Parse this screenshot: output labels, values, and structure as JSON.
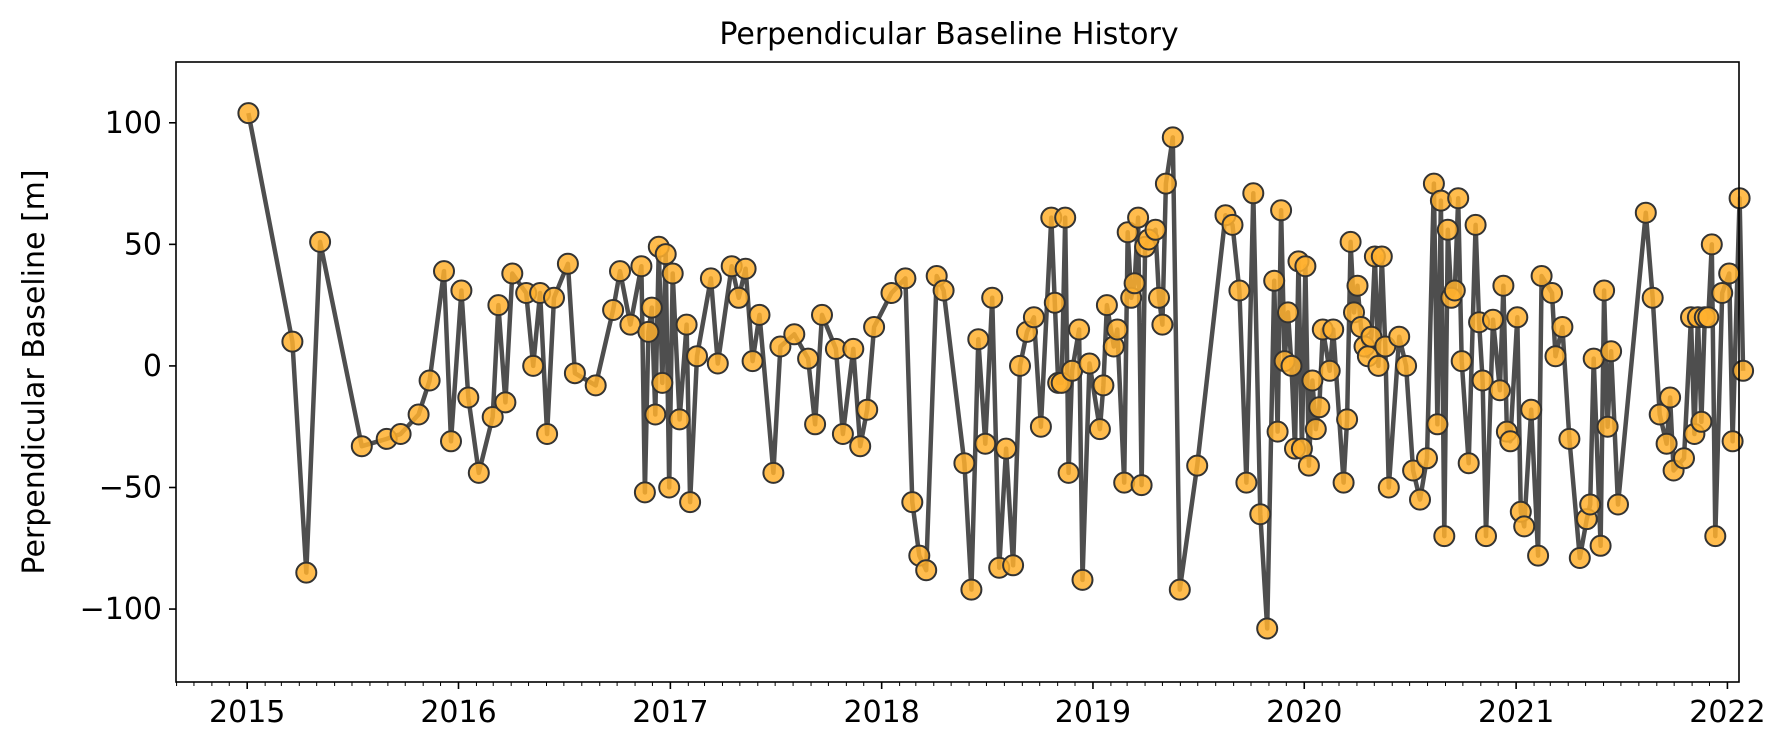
{
  "chart_data": {
    "type": "line",
    "title": "Perpendicular Baseline History",
    "xlabel": "",
    "ylabel": "Perpendicular Baseline [m]",
    "xlim": [
      "2014-08-31",
      "2022-01-21"
    ],
    "ylim": [
      -130,
      125
    ],
    "x_ticks": [
      "2015",
      "2016",
      "2017",
      "2018",
      "2019",
      "2020",
      "2021",
      "2022"
    ],
    "y_ticks": [
      -100,
      -50,
      0,
      50,
      100
    ],
    "y_tick_labels": [
      "−100",
      "−50",
      "0",
      "50",
      "100"
    ],
    "grid": false,
    "line_color": "#444444",
    "marker_face_color": "#FFB02E",
    "marker_edge_color": "#333333",
    "series": [
      {
        "points": [
          [
            "2015-01-03",
            104
          ],
          [
            "2015-03-20",
            10
          ],
          [
            "2015-04-13",
            -85
          ],
          [
            "2015-05-07",
            51
          ],
          [
            "2015-07-18",
            -33
          ],
          [
            "2015-08-30",
            -30
          ],
          [
            "2015-09-23",
            -28
          ],
          [
            "2015-10-24",
            -20
          ],
          [
            "2015-11-12",
            -6
          ],
          [
            "2015-12-07",
            39
          ],
          [
            "2015-12-19",
            -31
          ],
          [
            "2016-01-06",
            31
          ],
          [
            "2016-01-18",
            -13
          ],
          [
            "2016-02-05",
            -44
          ],
          [
            "2016-02-29",
            -21
          ],
          [
            "2016-03-10",
            25
          ],
          [
            "2016-03-22",
            -15
          ],
          [
            "2016-04-03",
            38
          ],
          [
            "2016-04-27",
            30
          ],
          [
            "2016-05-09",
            0
          ],
          [
            "2016-05-21",
            30
          ],
          [
            "2016-06-02",
            -28
          ],
          [
            "2016-06-14",
            28
          ],
          [
            "2016-07-08",
            42
          ],
          [
            "2016-07-20",
            -3
          ],
          [
            "2016-08-25",
            -8
          ],
          [
            "2016-09-24",
            23
          ],
          [
            "2016-10-06",
            39
          ],
          [
            "2016-10-24",
            17
          ],
          [
            "2016-11-12",
            41
          ],
          [
            "2016-11-18",
            -52
          ],
          [
            "2016-11-24",
            14
          ],
          [
            "2016-11-30",
            24
          ],
          [
            "2016-12-06",
            -20
          ],
          [
            "2016-12-12",
            49
          ],
          [
            "2016-12-18",
            -7
          ],
          [
            "2016-12-24",
            46
          ],
          [
            "2016-12-30",
            -50
          ],
          [
            "2017-01-05",
            38
          ],
          [
            "2017-01-17",
            -22
          ],
          [
            "2017-01-29",
            17
          ],
          [
            "2017-02-04",
            -56
          ],
          [
            "2017-02-16",
            4
          ],
          [
            "2017-03-12",
            36
          ],
          [
            "2017-03-24",
            1
          ],
          [
            "2017-04-17",
            41
          ],
          [
            "2017-04-29",
            28
          ],
          [
            "2017-05-11",
            40
          ],
          [
            "2017-05-23",
            2
          ],
          [
            "2017-06-04",
            21
          ],
          [
            "2017-06-28",
            -44
          ],
          [
            "2017-07-10",
            8
          ],
          [
            "2017-08-03",
            13
          ],
          [
            "2017-08-27",
            3
          ],
          [
            "2017-09-08",
            -24
          ],
          [
            "2017-09-20",
            21
          ],
          [
            "2017-10-14",
            7
          ],
          [
            "2017-10-26",
            -28
          ],
          [
            "2017-11-13",
            7
          ],
          [
            "2017-11-25",
            -33
          ],
          [
            "2017-12-07",
            -18
          ],
          [
            "2017-12-19",
            16
          ],
          [
            "2018-01-18",
            30
          ],
          [
            "2018-02-11",
            36
          ],
          [
            "2018-02-23",
            -56
          ],
          [
            "2018-03-07",
            -78
          ],
          [
            "2018-03-19",
            -84
          ],
          [
            "2018-04-06",
            37
          ],
          [
            "2018-04-18",
            31
          ],
          [
            "2018-05-24",
            -40
          ],
          [
            "2018-06-05",
            -92
          ],
          [
            "2018-06-17",
            11
          ],
          [
            "2018-06-29",
            -32
          ],
          [
            "2018-07-11",
            28
          ],
          [
            "2018-07-23",
            -83
          ],
          [
            "2018-08-04",
            -34
          ],
          [
            "2018-08-16",
            -82
          ],
          [
            "2018-08-28",
            0
          ],
          [
            "2018-09-09",
            14
          ],
          [
            "2018-09-21",
            20
          ],
          [
            "2018-10-03",
            -25
          ],
          [
            "2018-10-21",
            61
          ],
          [
            "2018-10-27",
            26
          ],
          [
            "2018-11-02",
            -7
          ],
          [
            "2018-11-08",
            -7
          ],
          [
            "2018-11-14",
            61
          ],
          [
            "2018-11-20",
            -44
          ],
          [
            "2018-11-26",
            -2
          ],
          [
            "2018-12-08",
            15
          ],
          [
            "2018-12-14",
            -88
          ],
          [
            "2018-12-26",
            1
          ],
          [
            "2019-01-13",
            -26
          ],
          [
            "2019-01-19",
            -8
          ],
          [
            "2019-01-25",
            25
          ],
          [
            "2019-02-06",
            8
          ],
          [
            "2019-02-12",
            15
          ],
          [
            "2019-02-24",
            -48
          ],
          [
            "2019-03-02",
            55
          ],
          [
            "2019-03-08",
            28
          ],
          [
            "2019-03-14",
            34
          ],
          [
            "2019-03-20",
            61
          ],
          [
            "2019-03-26",
            -49
          ],
          [
            "2019-04-01",
            49
          ],
          [
            "2019-04-07",
            52
          ],
          [
            "2019-04-19",
            56
          ],
          [
            "2019-04-25",
            28
          ],
          [
            "2019-05-01",
            17
          ],
          [
            "2019-05-07",
            75
          ],
          [
            "2019-05-19",
            94
          ],
          [
            "2019-05-31",
            -92
          ],
          [
            "2019-06-30",
            -41
          ],
          [
            "2019-08-18",
            62
          ],
          [
            "2019-08-30",
            58
          ],
          [
            "2019-09-11",
            31
          ],
          [
            "2019-09-23",
            -48
          ],
          [
            "2019-10-05",
            71
          ],
          [
            "2019-10-17",
            -61
          ],
          [
            "2019-10-29",
            -108
          ],
          [
            "2019-11-10",
            35
          ],
          [
            "2019-11-16",
            -27
          ],
          [
            "2019-11-22",
            64
          ],
          [
            "2019-11-28",
            2
          ],
          [
            "2019-12-04",
            22
          ],
          [
            "2019-12-10",
            0
          ],
          [
            "2019-12-16",
            -34
          ],
          [
            "2019-12-22",
            43
          ],
          [
            "2019-12-28",
            -34
          ],
          [
            "2020-01-03",
            41
          ],
          [
            "2020-01-09",
            -41
          ],
          [
            "2020-01-15",
            -6
          ],
          [
            "2020-01-21",
            -26
          ],
          [
            "2020-01-27",
            -17
          ],
          [
            "2020-02-02",
            15
          ],
          [
            "2020-02-14",
            -2
          ],
          [
            "2020-02-20",
            15
          ],
          [
            "2020-03-09",
            -48
          ],
          [
            "2020-03-15",
            -22
          ],
          [
            "2020-03-21",
            51
          ],
          [
            "2020-03-27",
            22
          ],
          [
            "2020-04-02",
            33
          ],
          [
            "2020-04-08",
            16
          ],
          [
            "2020-04-14",
            8
          ],
          [
            "2020-04-20",
            4
          ],
          [
            "2020-04-26",
            12
          ],
          [
            "2020-05-02",
            45
          ],
          [
            "2020-05-08",
            0
          ],
          [
            "2020-05-14",
            45
          ],
          [
            "2020-05-20",
            8
          ],
          [
            "2020-05-26",
            -50
          ],
          [
            "2020-06-13",
            12
          ],
          [
            "2020-06-25",
            0
          ],
          [
            "2020-07-07",
            -43
          ],
          [
            "2020-07-19",
            -55
          ],
          [
            "2020-07-31",
            -38
          ],
          [
            "2020-08-12",
            75
          ],
          [
            "2020-08-18",
            -24
          ],
          [
            "2020-08-24",
            68
          ],
          [
            "2020-08-30",
            -70
          ],
          [
            "2020-09-05",
            56
          ],
          [
            "2020-09-11",
            28
          ],
          [
            "2020-09-17",
            31
          ],
          [
            "2020-09-23",
            69
          ],
          [
            "2020-09-29",
            2
          ],
          [
            "2020-10-11",
            -40
          ],
          [
            "2020-10-23",
            58
          ],
          [
            "2020-10-29",
            18
          ],
          [
            "2020-11-04",
            -6
          ],
          [
            "2020-11-10",
            -70
          ],
          [
            "2020-11-22",
            19
          ],
          [
            "2020-12-04",
            -10
          ],
          [
            "2020-12-10",
            33
          ],
          [
            "2020-12-16",
            -27
          ],
          [
            "2020-12-22",
            -31
          ],
          [
            "2021-01-03",
            20
          ],
          [
            "2021-01-09",
            -60
          ],
          [
            "2021-01-15",
            -66
          ],
          [
            "2021-01-27",
            -18
          ],
          [
            "2021-02-08",
            -78
          ],
          [
            "2021-02-14",
            37
          ],
          [
            "2021-03-04",
            30
          ],
          [
            "2021-03-10",
            4
          ],
          [
            "2021-03-22",
            16
          ],
          [
            "2021-04-03",
            -30
          ],
          [
            "2021-04-21",
            -79
          ],
          [
            "2021-05-03",
            -63
          ],
          [
            "2021-05-09",
            -57
          ],
          [
            "2021-05-15",
            3
          ],
          [
            "2021-05-27",
            -74
          ],
          [
            "2021-06-02",
            31
          ],
          [
            "2021-06-08",
            -25
          ],
          [
            "2021-06-14",
            6
          ],
          [
            "2021-06-26",
            -57
          ],
          [
            "2021-08-13",
            63
          ],
          [
            "2021-08-25",
            28
          ],
          [
            "2021-09-06",
            -20
          ],
          [
            "2021-09-18",
            -32
          ],
          [
            "2021-09-24",
            -13
          ],
          [
            "2021-09-30",
            -43
          ],
          [
            "2021-10-18",
            -38
          ],
          [
            "2021-10-30",
            20
          ],
          [
            "2021-11-05",
            -28
          ],
          [
            "2021-11-11",
            20
          ],
          [
            "2021-11-17",
            -23
          ],
          [
            "2021-11-23",
            20
          ],
          [
            "2021-11-29",
            20
          ],
          [
            "2021-12-05",
            50
          ],
          [
            "2021-12-11",
            -70
          ],
          [
            "2021-12-23",
            30
          ],
          [
            "2022-01-04",
            38
          ],
          [
            "2022-01-10",
            -31
          ],
          [
            "2022-01-22",
            69
          ],
          [
            "2022-01-28",
            -2
          ]
        ]
      }
    ]
  }
}
